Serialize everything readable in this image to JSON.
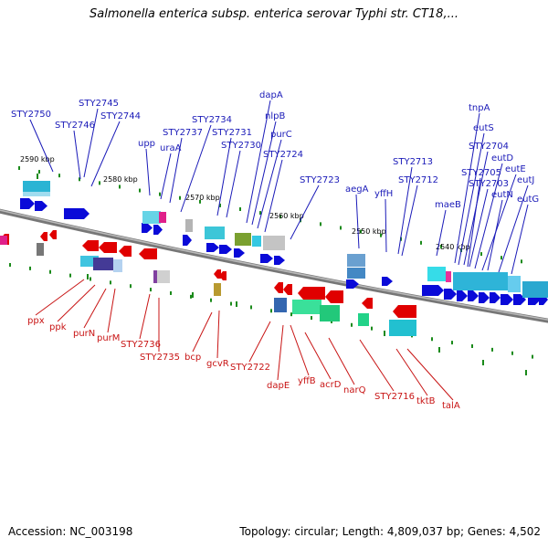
{
  "title": "Salmonella enterica subsp. enterica serovar Typhi str. CT18,...",
  "footer": {
    "accession": "Accession: NC_003198",
    "topology": "Topology: circular; Length: 4,809,037 bp; Genes: 4,502"
  },
  "colors": {
    "forward": "#0a0ad8",
    "reverse": "#e00000",
    "backbone": "#888888",
    "tick": "#1a8a1a"
  },
  "kbp_ticks": [
    "2590 kbp",
    "2580 kbp",
    "2570 kbp",
    "2560 kbp",
    "2550 kbp",
    "2540 kbp"
  ],
  "forward_genes": [
    "STY2750",
    "STY2746",
    "STY2745",
    "STY2744",
    "upp",
    "uraA",
    "STY2737",
    "STY2734",
    "STY2731",
    "STY2730",
    "dapA",
    "nlpB",
    "purC",
    "STY2724",
    "STY2723",
    "aegA",
    "yffH",
    "STY2713",
    "STY2712",
    "maeB",
    "tnpA",
    "eutS",
    "STY2704",
    "STY2705",
    "STY2703",
    "eutD",
    "eutE",
    "eutN",
    "eutJ",
    "eutG"
  ],
  "reverse_genes": [
    "ppx",
    "ppk",
    "purN",
    "purM",
    "STY2736",
    "STY2735",
    "bcp",
    "gcvR",
    "STY2722",
    "dapE",
    "yffB",
    "acrD",
    "narQ",
    "STY2716",
    "tktB",
    "talA"
  ]
}
